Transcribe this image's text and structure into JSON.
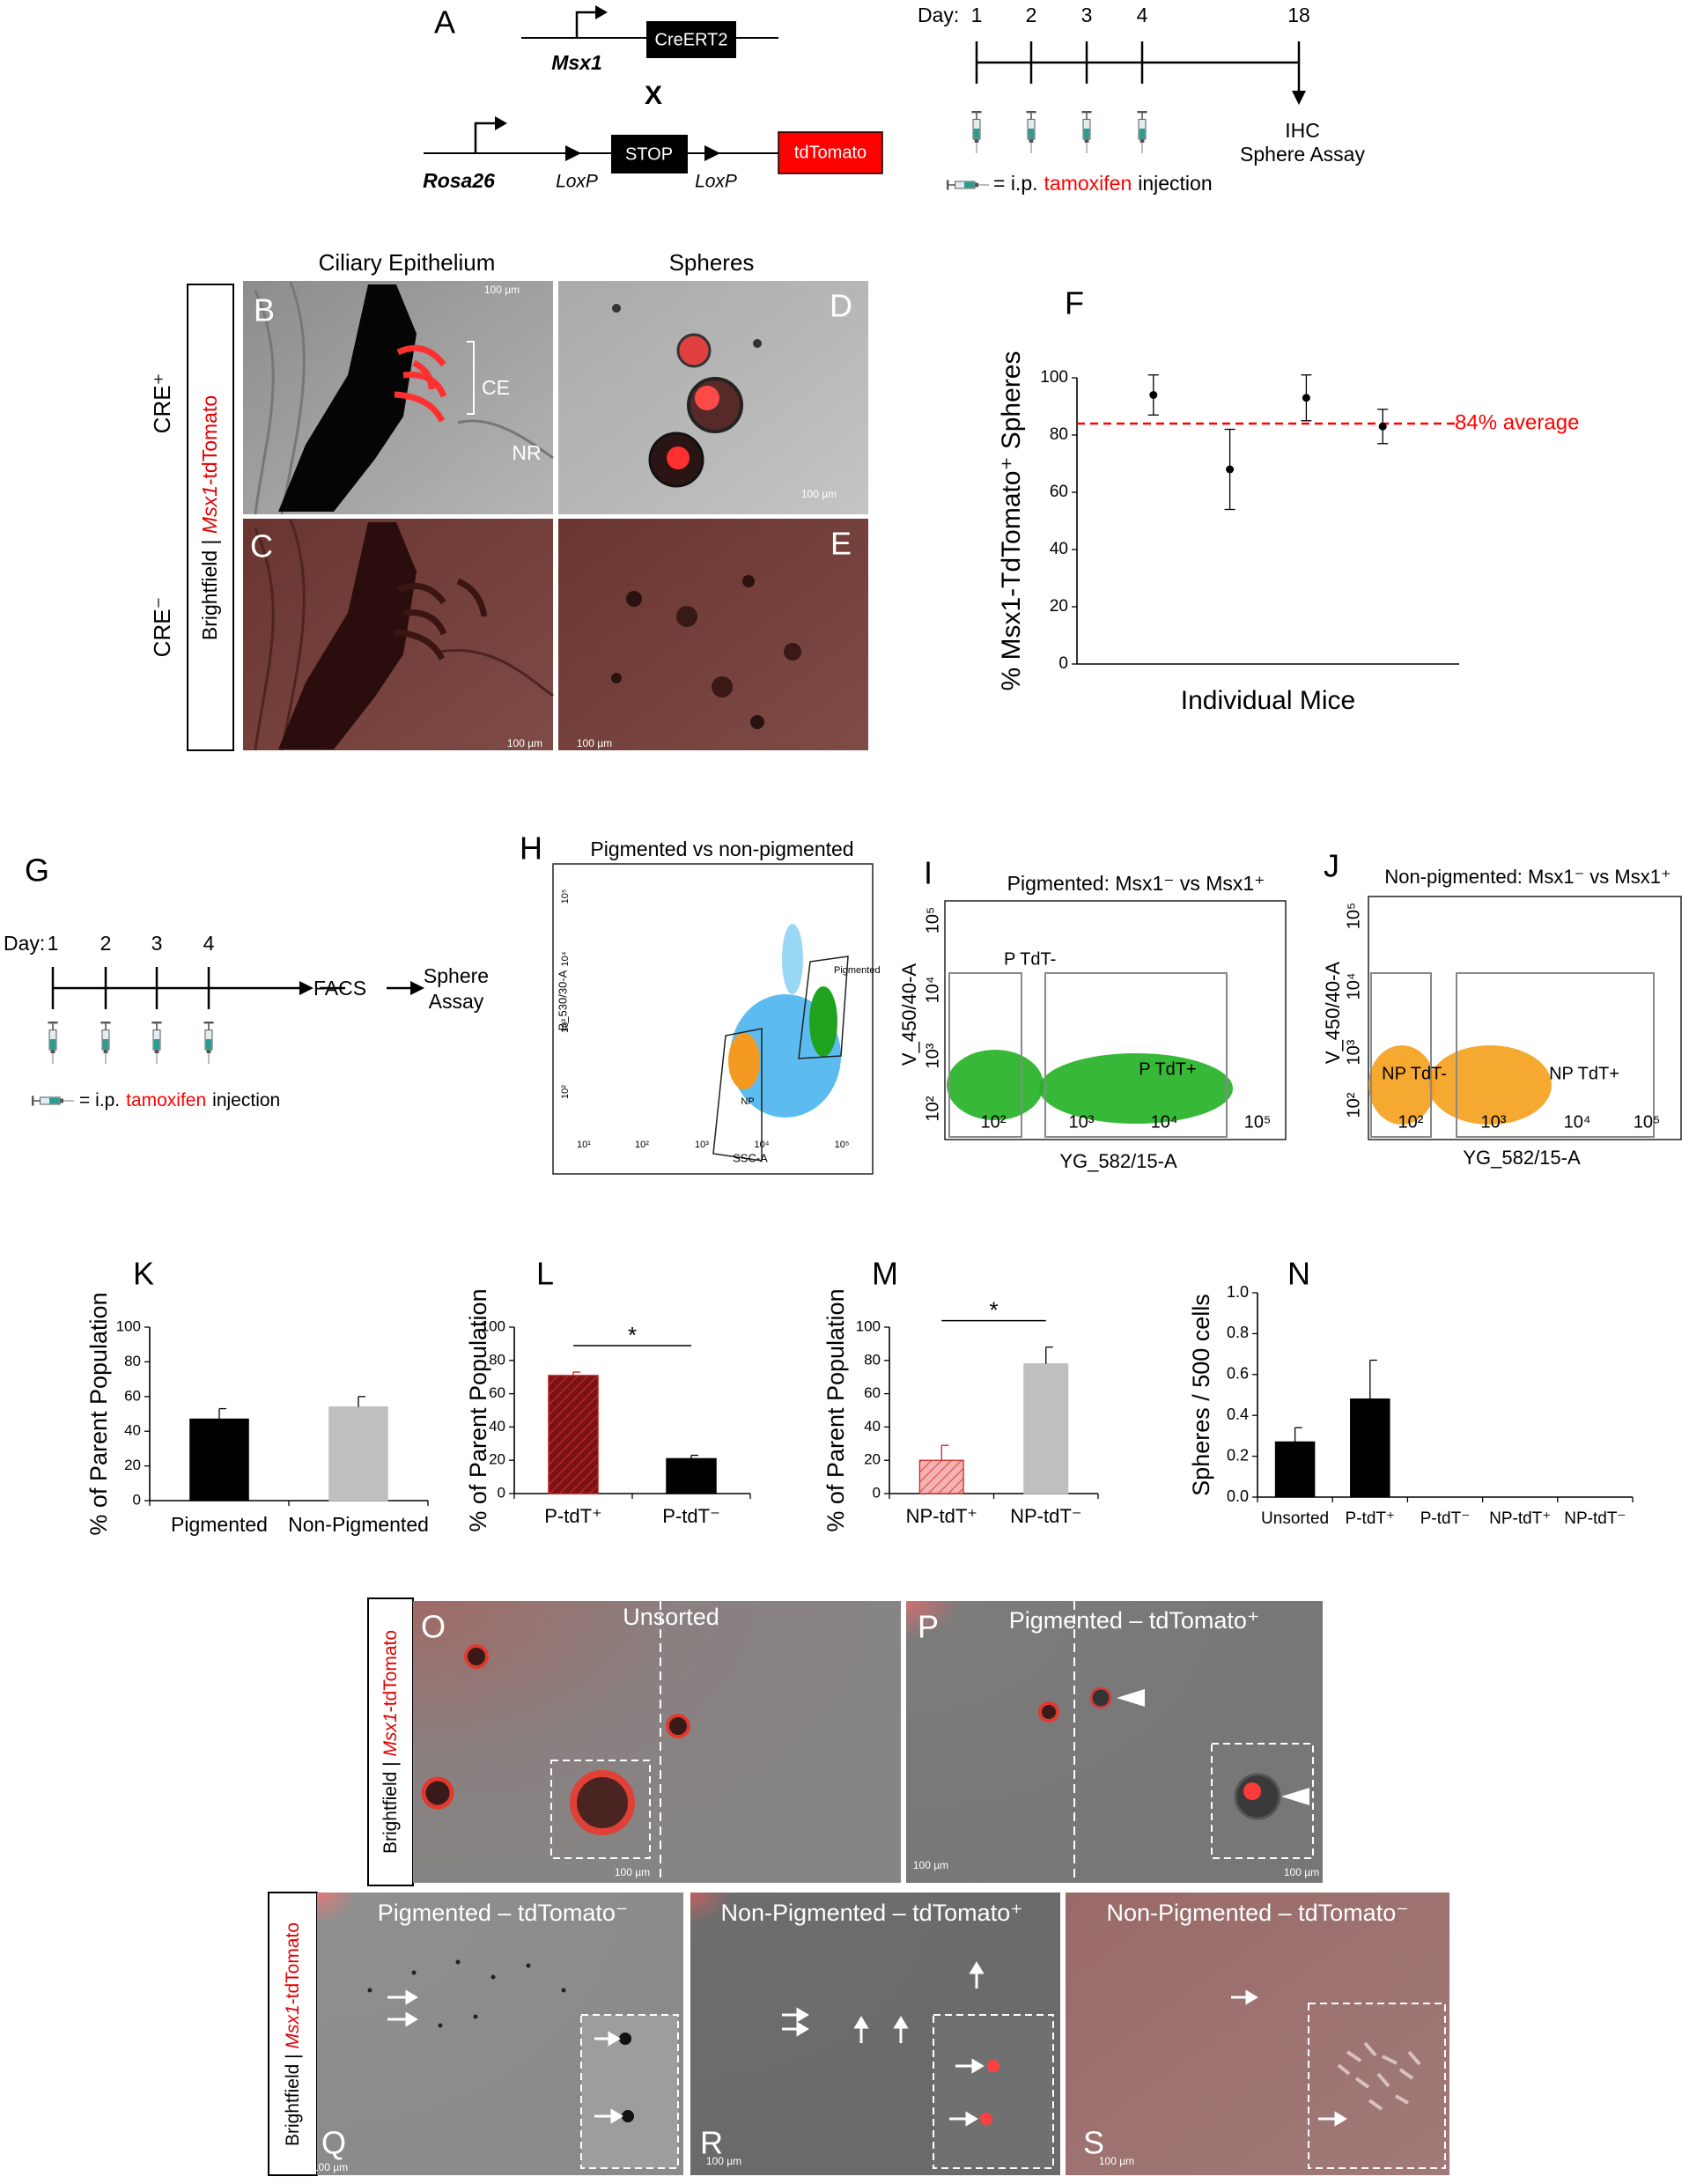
{
  "panel_a": {
    "label": "A",
    "gene1": "Msx1",
    "cre": "CreERT2",
    "cross": "X",
    "gene2": "Rosa26",
    "loxp": "LoxP",
    "stop": "STOP",
    "reporter": "tdTomato",
    "day_label": "Day:",
    "days": [
      "1",
      "2",
      "3",
      "4",
      "18"
    ],
    "endpoint": [
      "IHC",
      "Sphere Assay"
    ],
    "legend": {
      "prefix": "= i.p.",
      "drug": "tamoxifen",
      "suffix": "injection"
    }
  },
  "panel_be": {
    "labels": [
      "B",
      "C",
      "D",
      "E"
    ],
    "col_titles": [
      "Ciliary Epithelium",
      "Spheres"
    ],
    "row_titles": [
      "CRE⁺",
      "CRE⁻"
    ],
    "side_label": {
      "prefix": "Brightfield | ",
      "gene": "Msx1",
      "suffix": "-tdTomato"
    },
    "annotations": [
      "CE",
      "NR"
    ],
    "scale_bar": "100 µm"
  },
  "panel_g": {
    "label": "G",
    "day_label": "Day:",
    "days": [
      "1",
      "2",
      "3",
      "4"
    ],
    "steps": [
      "FACS",
      "Sphere",
      "Assay"
    ],
    "legend": {
      "prefix": "= i.p.",
      "drug": "tamoxifen",
      "suffix": "injection"
    }
  },
  "flow": [
    {
      "label": "H",
      "title": "Pigmented vs non-pigmented",
      "xlabel": "SSC-A",
      "ylabel": "B_530/30-A",
      "xticks": [
        "10¹",
        "10²",
        "10³",
        "10⁴",
        "10⁵"
      ],
      "yticks": [
        "10⁵",
        "10⁴",
        "10³",
        "10²"
      ],
      "gates": [
        "Pigmented",
        "NP"
      ]
    },
    {
      "label": "I",
      "title": "Pigmented: Msx1⁻ vs Msx1⁺",
      "xlabel": "YG_582/15-A",
      "ylabel": "V_450/40-A",
      "xticks": [
        "10²",
        "10³",
        "10⁴",
        "10⁵"
      ],
      "yticks": [
        "10⁵",
        "10⁴",
        "10³",
        "10²"
      ],
      "gates": [
        "P TdT-",
        "P TdT+"
      ]
    },
    {
      "label": "J",
      "title": "Non-pigmented: Msx1⁻ vs Msx1⁺",
      "xlabel": "YG_582/15-A",
      "ylabel": "V_450/40-A",
      "xticks": [
        "10²",
        "10³",
        "10⁴",
        "10⁵"
      ],
      "yticks": [
        "10⁵",
        "10⁴",
        "10³",
        "10²"
      ],
      "gates": [
        "NP TdT-",
        "NP TdT+"
      ]
    }
  ],
  "panel_os": {
    "labels": [
      "O",
      "P",
      "Q",
      "R",
      "S"
    ],
    "titles": [
      "Unsorted",
      "Pigmented – tdTomato⁺",
      "Pigmented – tdTomato⁻",
      "Non-Pigmented – tdTomato⁺",
      "Non-Pigmented – tdTomato⁻"
    ],
    "side_label": {
      "prefix": "Brightfield | ",
      "gene": "Msx1",
      "suffix": "-tdTomato"
    },
    "scale_bar": "100 µm"
  },
  "chart_data": [
    {
      "type": "scatter",
      "label": "F",
      "ylabel": "% Msx1-TdTomato⁺ Spheres",
      "xlabel": "Individual Mice",
      "x": [
        1,
        2,
        3,
        4
      ],
      "values": [
        94,
        68,
        93,
        83
      ],
      "errors": [
        7,
        14,
        8,
        6
      ],
      "color": "#000000",
      "xlim": [
        0,
        5
      ],
      "ylim": [
        0,
        100
      ],
      "yticks": [
        0,
        20,
        40,
        60,
        80,
        100
      ],
      "reference": {
        "value": 84,
        "label": "84% average",
        "color": "#ff0000"
      }
    },
    {
      "type": "bar",
      "label": "K",
      "ylabel": "% of Parent Population",
      "categories": [
        "Pigmented",
        "Non-Pigmented"
      ],
      "values": [
        47,
        54
      ],
      "errors": [
        6,
        6
      ],
      "colors": [
        "#000000",
        "#bfbfbf"
      ],
      "hatched": [
        false,
        false
      ],
      "ylim": [
        0,
        100
      ],
      "yticks": [
        0,
        20,
        40,
        60,
        80,
        100
      ]
    },
    {
      "type": "bar",
      "label": "L",
      "ylabel": "% of Parent Population",
      "categories": [
        "P-tdT⁺",
        "P-tdT⁻"
      ],
      "values": [
        71,
        21
      ],
      "errors": [
        2,
        2
      ],
      "colors": [
        "#7a1414",
        "#000000"
      ],
      "hatched": [
        true,
        false
      ],
      "significance": "*",
      "ylim": [
        0,
        100
      ],
      "yticks": [
        0,
        20,
        40,
        60,
        80,
        100
      ]
    },
    {
      "type": "bar",
      "label": "M",
      "ylabel": "% of Parent Population",
      "categories": [
        "NP-tdT⁺",
        "NP-tdT⁻"
      ],
      "values": [
        20,
        78
      ],
      "errors": [
        9,
        10
      ],
      "colors": [
        "#f3b3b3",
        "#bfbfbf"
      ],
      "hatched": [
        true,
        false
      ],
      "significance": "*",
      "ylim": [
        0,
        100
      ],
      "yticks": [
        0,
        20,
        40,
        60,
        80,
        100
      ]
    },
    {
      "type": "bar",
      "label": "N",
      "ylabel": "Spheres / 500 cells",
      "categories": [
        "Unsorted",
        "P-tdT⁺",
        "P-tdT⁻",
        "NP-tdT⁺",
        "NP-tdT⁻"
      ],
      "values": [
        0.27,
        0.48,
        0,
        0,
        0
      ],
      "errors": [
        0.07,
        0.19,
        null,
        null,
        null
      ],
      "colors": [
        "#000000",
        "#000000",
        "#000000",
        "#000000",
        "#000000"
      ],
      "hatched": [
        false,
        false,
        false,
        false,
        false
      ],
      "ylim": [
        0,
        1
      ],
      "yticks": [
        {
          "value": 0,
          "label": "0.0"
        },
        {
          "value": 0.2,
          "label": "0.2"
        },
        {
          "value": 0.4,
          "label": "0.4"
        },
        {
          "value": 0.6,
          "label": "0.6"
        },
        {
          "value": 0.8,
          "label": "0.8"
        },
        {
          "value": 1,
          "label": "1.0"
        }
      ]
    }
  ]
}
